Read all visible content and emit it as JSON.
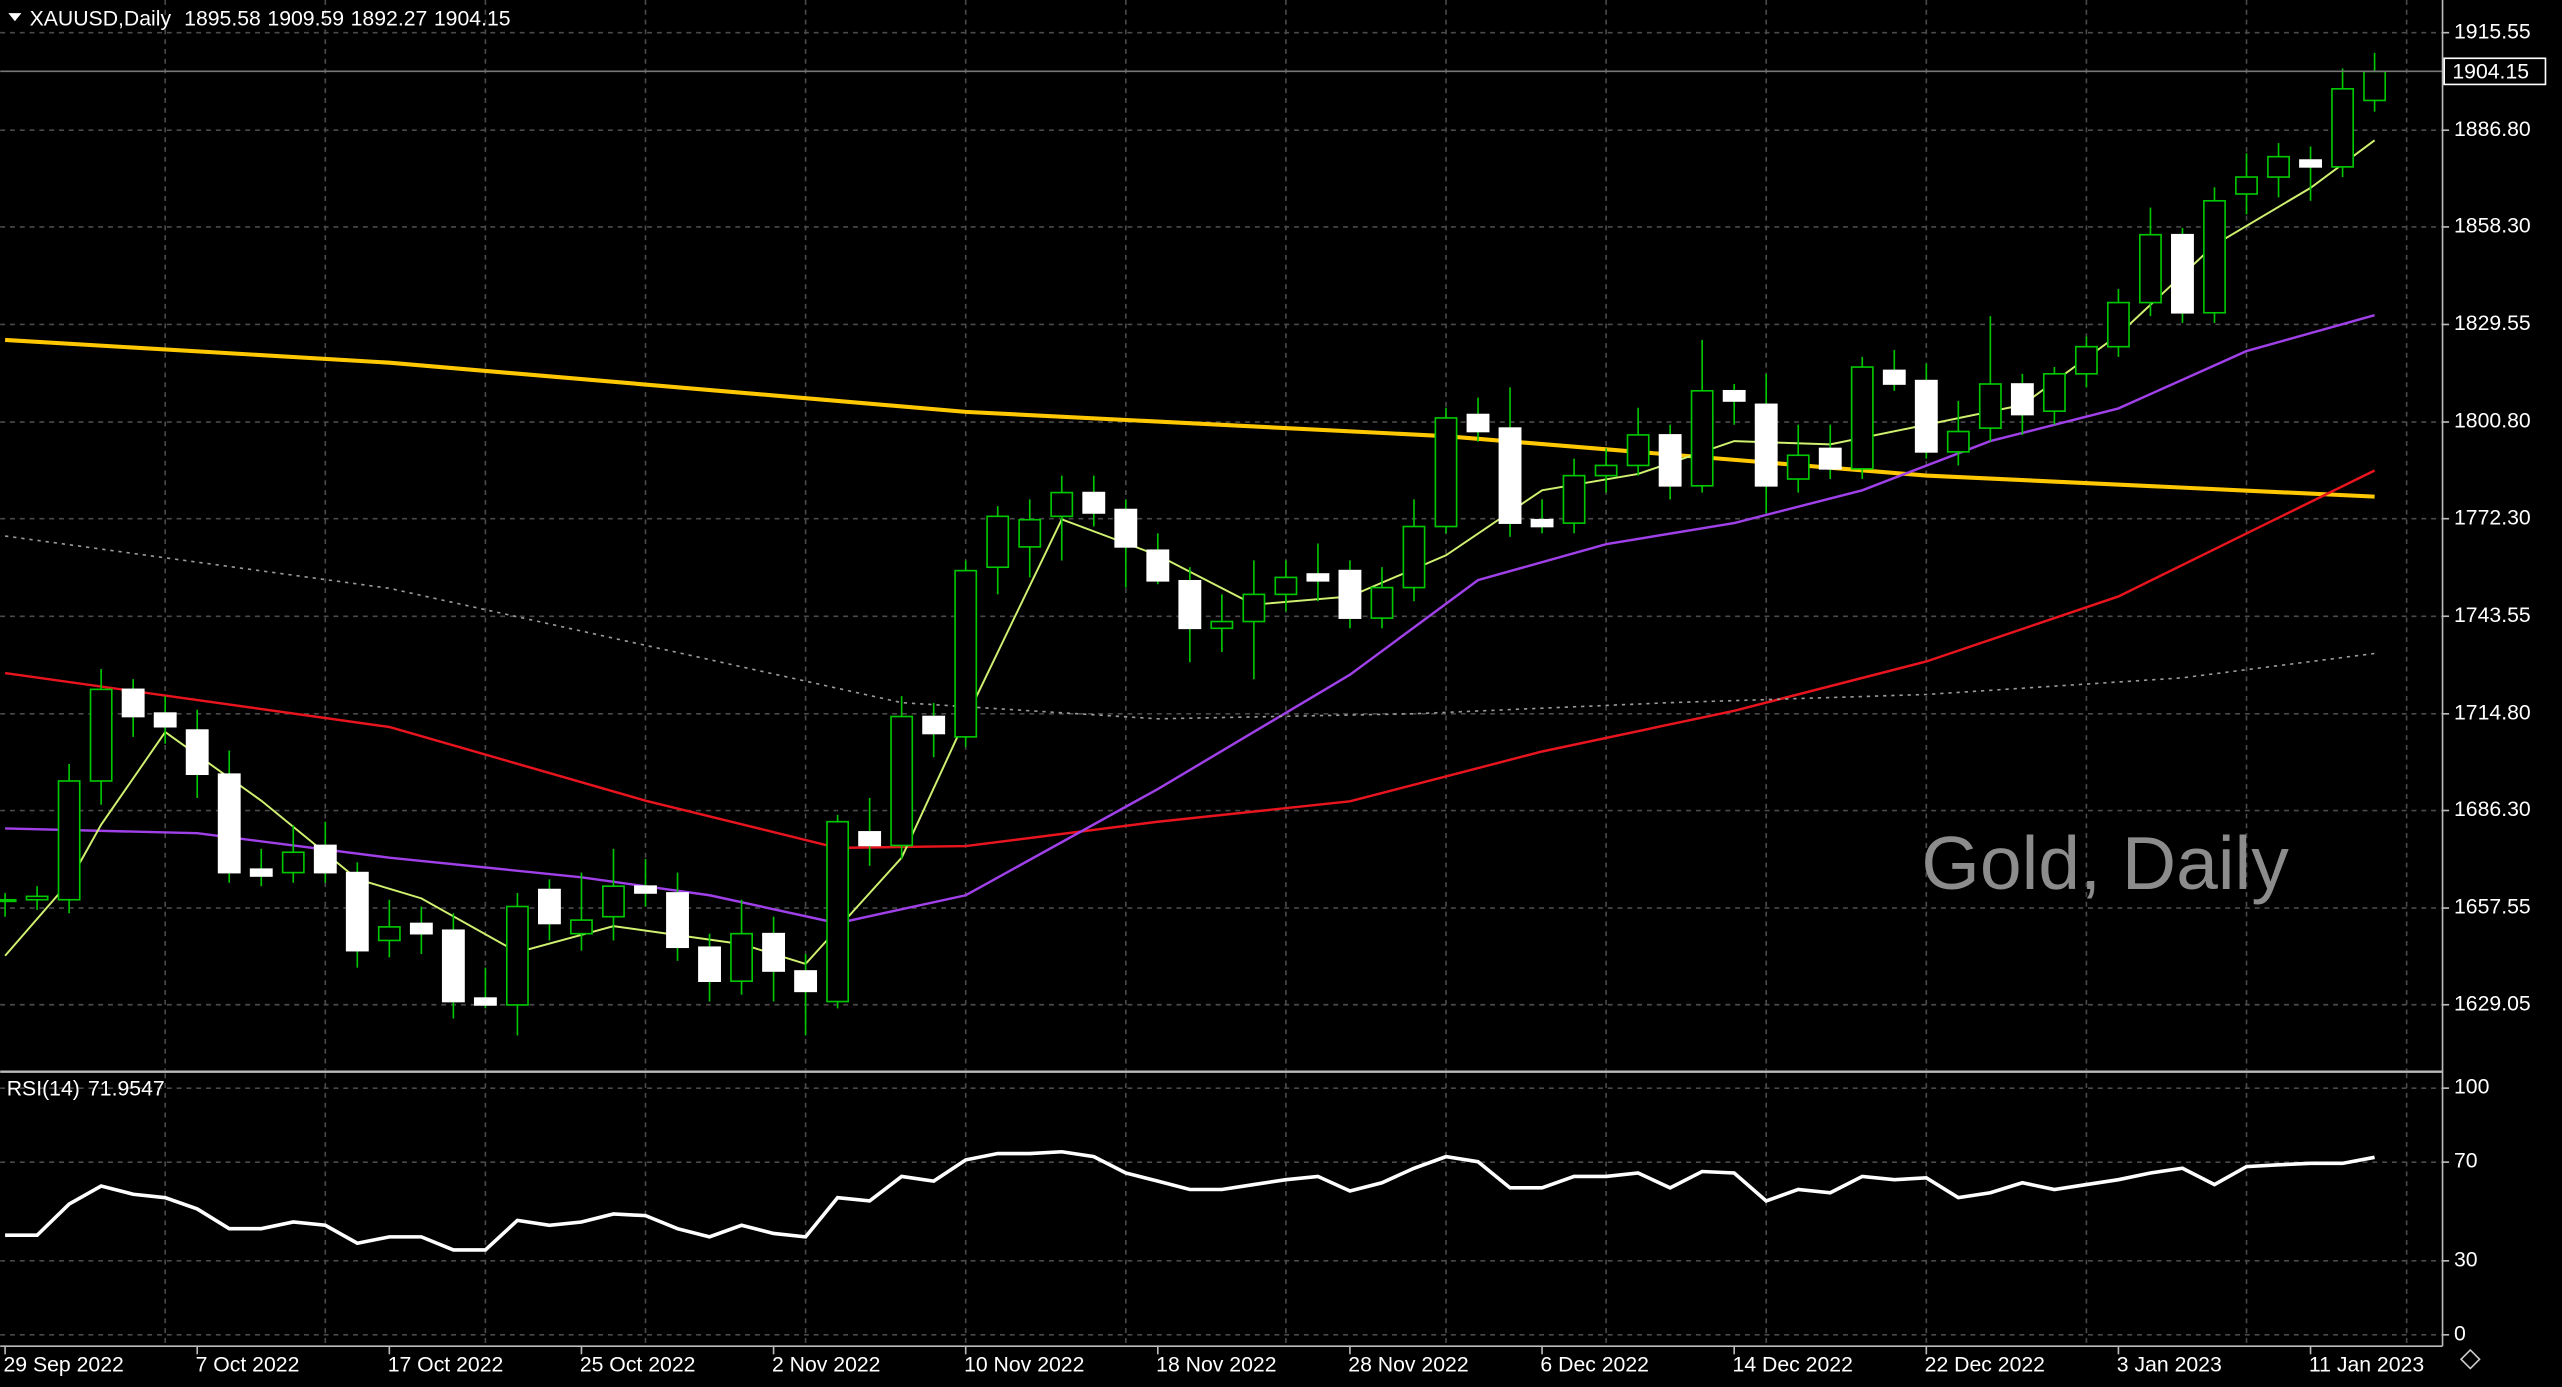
{
  "chart_data": [
    {
      "type": "candlestick",
      "title": "XAUUSD,Daily",
      "watermark": "Gold, Daily",
      "categories": [
        "29 Sep 2022",
        null,
        null,
        null,
        null,
        null,
        "7 Oct 2022",
        null,
        null,
        null,
        null,
        null,
        "17 Oct 2022",
        null,
        null,
        null,
        null,
        null,
        "25 Oct 2022",
        null,
        null,
        null,
        null,
        null,
        "2 Nov 2022",
        null,
        null,
        null,
        null,
        null,
        "10 Nov 2022",
        null,
        null,
        null,
        null,
        null,
        "18 Nov 2022",
        null,
        null,
        null,
        null,
        null,
        "28 Nov 2022",
        null,
        null,
        null,
        null,
        null,
        "6 Dec 2022",
        null,
        null,
        null,
        null,
        null,
        "14 Dec 2022",
        null,
        null,
        null,
        null,
        null,
        "22 Dec 2022",
        null,
        null,
        null,
        null,
        null,
        "3 Jan 2023",
        null,
        null,
        null,
        null,
        null,
        "11 Jan 2023",
        null,
        null
      ],
      "open": [
        1660,
        1660,
        1660,
        1695,
        1722,
        1715,
        1710,
        1697,
        1669,
        1668,
        1676,
        1668,
        1648,
        1653,
        1651,
        1631,
        1629,
        1663,
        1650,
        1655,
        1664,
        1662,
        1646,
        1636,
        1650,
        1639,
        1630,
        1680,
        1676,
        1714,
        1708,
        1758,
        1764,
        1773,
        1780,
        1775,
        1763,
        1754,
        1740,
        1742,
        1750,
        1756,
        1757,
        1743,
        1752,
        1770,
        1803,
        1799,
        1772,
        1771,
        1785,
        1788,
        1797,
        1782,
        1810,
        1806,
        1784,
        1793,
        1787,
        1816,
        1813,
        1792,
        1799,
        1812,
        1804,
        1815,
        1823,
        1836,
        1856,
        1833,
        1868,
        1873,
        1878,
        1876,
        1895.58
      ],
      "high": [
        1662,
        1664,
        1700,
        1728,
        1725,
        1720,
        1716,
        1704,
        1675,
        1682,
        1683,
        1671,
        1660,
        1658,
        1656,
        1640,
        1662,
        1666,
        1668,
        1675,
        1672,
        1668,
        1650,
        1660,
        1655,
        1644,
        1685,
        1690,
        1720,
        1718,
        1760,
        1776,
        1778,
        1785,
        1785,
        1778,
        1768,
        1758,
        1750,
        1760,
        1760,
        1765,
        1760,
        1758,
        1778,
        1805,
        1808,
        1811,
        1778,
        1790,
        1793,
        1805,
        1800,
        1825,
        1812,
        1815,
        1800,
        1800,
        1820,
        1822,
        1818,
        1807,
        1832,
        1815,
        1817,
        1826,
        1840,
        1864,
        1858,
        1870,
        1880,
        1883,
        1882,
        1905,
        1909.59
      ],
      "low": [
        1655,
        1657,
        1656,
        1688,
        1708,
        1706,
        1690,
        1665,
        1664,
        1665,
        1665,
        1640,
        1643,
        1644,
        1625,
        1628,
        1620,
        1648,
        1645,
        1648,
        1658,
        1642,
        1630,
        1632,
        1630,
        1620,
        1628,
        1670,
        1672,
        1702,
        1705,
        1750,
        1755,
        1760,
        1770,
        1752,
        1753,
        1730,
        1733,
        1725,
        1745,
        1748,
        1740,
        1740,
        1748,
        1768,
        1795,
        1767,
        1768,
        1768,
        1780,
        1785,
        1778,
        1780,
        1800,
        1774,
        1780,
        1784,
        1784,
        1810,
        1790,
        1788,
        1795,
        1797,
        1800,
        1811,
        1820,
        1832,
        1830,
        1830,
        1862,
        1867,
        1866,
        1873,
        1892.27
      ],
      "close": [
        1660,
        1661,
        1695,
        1722,
        1714,
        1711,
        1697,
        1668,
        1667,
        1674,
        1668,
        1645,
        1652,
        1650,
        1630,
        1629,
        1658,
        1653,
        1654,
        1664,
        1662,
        1646,
        1636,
        1650,
        1639,
        1633,
        1683,
        1676,
        1714,
        1709,
        1757,
        1773,
        1772,
        1780,
        1774,
        1764,
        1754,
        1740,
        1742,
        1750,
        1755,
        1754,
        1743,
        1752,
        1770,
        1802,
        1798,
        1771,
        1770,
        1785,
        1788,
        1797,
        1782,
        1810,
        1807,
        1782,
        1791,
        1787,
        1817,
        1812,
        1792,
        1798,
        1812,
        1803,
        1815,
        1823,
        1836,
        1856,
        1833,
        1866,
        1873,
        1879,
        1876,
        1899,
        1904.15
      ],
      "up_color": "#00c800",
      "down_color": "#ffffff",
      "ylim": [
        1609.8,
        1925.18
      ],
      "yticks": [
        1915.55,
        {
          "value": 1886.8,
          "label": "1886.80"
        },
        {
          "value": 1858.3,
          "label": "1858.30"
        },
        1829.55,
        {
          "value": 1800.8,
          "label": "1800.80"
        },
        {
          "value": 1772.3,
          "label": "1772.30"
        },
        1743.55,
        {
          "value": 1714.8,
          "label": "1714.80"
        },
        {
          "value": 1686.3,
          "label": "1686.30"
        },
        1657.55,
        1629.05
      ],
      "grid": true,
      "series": [
        {
          "color": "#ffc800",
          "width": 2.5,
          "x": [
            0,
            12,
            30,
            45,
            60,
            74
          ],
          "values": [
            1825,
            1818.3,
            1803.8,
            1796.6,
            1785,
            1778.8
          ]
        },
        {
          "color": "#e8141e",
          "width": 1.5,
          "x": [
            0,
            12,
            20,
            26,
            30,
            36,
            42,
            48,
            54,
            60,
            66,
            74
          ],
          "values": [
            1726.8,
            1710.9,
            1689.2,
            1675.3,
            1675.8,
            1683,
            1689,
            1703.7,
            1715.7,
            1730.2,
            1749.4,
            1786.5
          ]
        },
        {
          "color": "#a040e8",
          "width": 1.5,
          "x": [
            0,
            6,
            12,
            18,
            22,
            26,
            30,
            36,
            42,
            46,
            50,
            54,
            58,
            62,
            66,
            70,
            74
          ],
          "values": [
            1681,
            1679.6,
            1672.4,
            1666.6,
            1661.3,
            1653.1,
            1661.3,
            1692.6,
            1726.3,
            1754.2,
            1764.8,
            1771,
            1780.7,
            1795.2,
            1804.8,
            1821.7,
            1832.3
          ]
        },
        {
          "color": "#d0f070",
          "width": 1.2,
          "x": [
            0,
            2,
            3,
            5,
            8,
            11,
            13,
            16,
            19,
            23,
            25,
            28,
            30,
            33,
            36,
            39,
            42,
            45,
            48,
            51,
            54,
            57,
            60,
            63,
            66,
            69,
            72,
            74
          ],
          "values": [
            1643.5,
            1665.2,
            1682.1,
            1709.4,
            1689.2,
            1666.1,
            1660.4,
            1644.5,
            1652.2,
            1646.9,
            1641.1,
            1672.4,
            1713.3,
            1772.1,
            1761.5,
            1747,
            1749.4,
            1761.5,
            1780.7,
            1785.5,
            1795.2,
            1794.2,
            1800,
            1805.8,
            1826.5,
            1853,
            1869.8,
            1883.8
          ]
        },
        {
          "color": "#9a9a9a",
          "width": 1,
          "dashed": true,
          "x": [
            0,
            12,
            20,
            28,
            36,
            44,
            52,
            60,
            68,
            74
          ],
          "values": [
            1767.2,
            1751.8,
            1735,
            1718.1,
            1713.3,
            1714.8,
            1718.1,
            1720.5,
            1725.4,
            1732.6
          ]
        }
      ]
    },
    {
      "type": "line",
      "title": "RSI(14)",
      "color": "#ffffff",
      "values": [
        40.4,
        40.4,
        53,
        60.3,
        57,
        55.6,
        51,
        43,
        43,
        45.7,
        44.4,
        37.1,
        39.7,
        39.7,
        34.4,
        34.4,
        46.4,
        44.4,
        45.7,
        49,
        48.3,
        43,
        39.7,
        44.4,
        41.1,
        39.7,
        55.6,
        54.3,
        64.2,
        62.3,
        70.9,
        73.5,
        73.5,
        74.2,
        72.2,
        65.6,
        62.3,
        58.9,
        58.9,
        60.9,
        62.9,
        64.2,
        58.3,
        61.6,
        67.5,
        72.2,
        70.2,
        59.6,
        59.6,
        64.2,
        64.2,
        65.6,
        59.6,
        66.2,
        65.6,
        54.3,
        58.9,
        57.6,
        64.2,
        62.9,
        63.6,
        55.6,
        57.6,
        61.6,
        58.9,
        60.9,
        62.9,
        65.6,
        67.5,
        60.9,
        68.2,
        68.9,
        69.5,
        69.5,
        71.9547
      ],
      "ylim": [
        -4.6,
        106
      ],
      "yticks": [
        100,
        70,
        30,
        0
      ],
      "grid": true
    }
  ]
}
